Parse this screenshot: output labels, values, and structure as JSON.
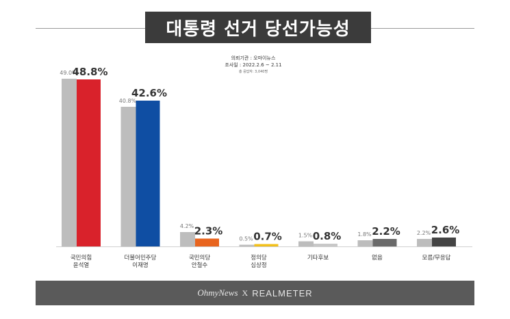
{
  "title": "대통령 선거 당선가능성",
  "survey": {
    "org": "의뢰기관 : 오마이뉴스",
    "period": "조사일 : 2022.2.6 ~ 2.11",
    "sample": "총 응답자: 3,040명"
  },
  "footer": {
    "left": "OhmyNews",
    "sep": "X",
    "right": "REALMETER"
  },
  "chart_data": {
    "type": "bar",
    "categories": [
      [
        "국민의힘",
        "윤석열"
      ],
      [
        "더불어민주당",
        "이재명"
      ],
      [
        "국민의당",
        "안철수"
      ],
      [
        "정의당",
        "심상정"
      ],
      [
        "기타후보"
      ],
      [
        "없음"
      ],
      [
        "모름/무응답"
      ]
    ],
    "series": [
      {
        "values": [
          49.0,
          40.8,
          4.2,
          0.5,
          1.5,
          1.8,
          2.2
        ],
        "labels": [
          "49.0%",
          "40.8%",
          "4.2%",
          "0.5%",
          "1.5%",
          "1.8%",
          "2.2%"
        ],
        "color": "#bdbdbd"
      },
      {
        "values": [
          48.8,
          42.6,
          2.3,
          0.7,
          0.8,
          2.2,
          2.6
        ],
        "labels": [
          "48.8%",
          "42.6%",
          "2.3%",
          "0.7%",
          "0.8%",
          "2.2%",
          "2.6%"
        ],
        "colors": [
          "#d9222b",
          "#0f4ea3",
          "#e8641e",
          "#f2c01a",
          "#c8c8c8",
          "#6a6a6a",
          "#444444"
        ]
      }
    ],
    "ylim": [
      0,
      50
    ],
    "grid": false,
    "legend": "none"
  }
}
